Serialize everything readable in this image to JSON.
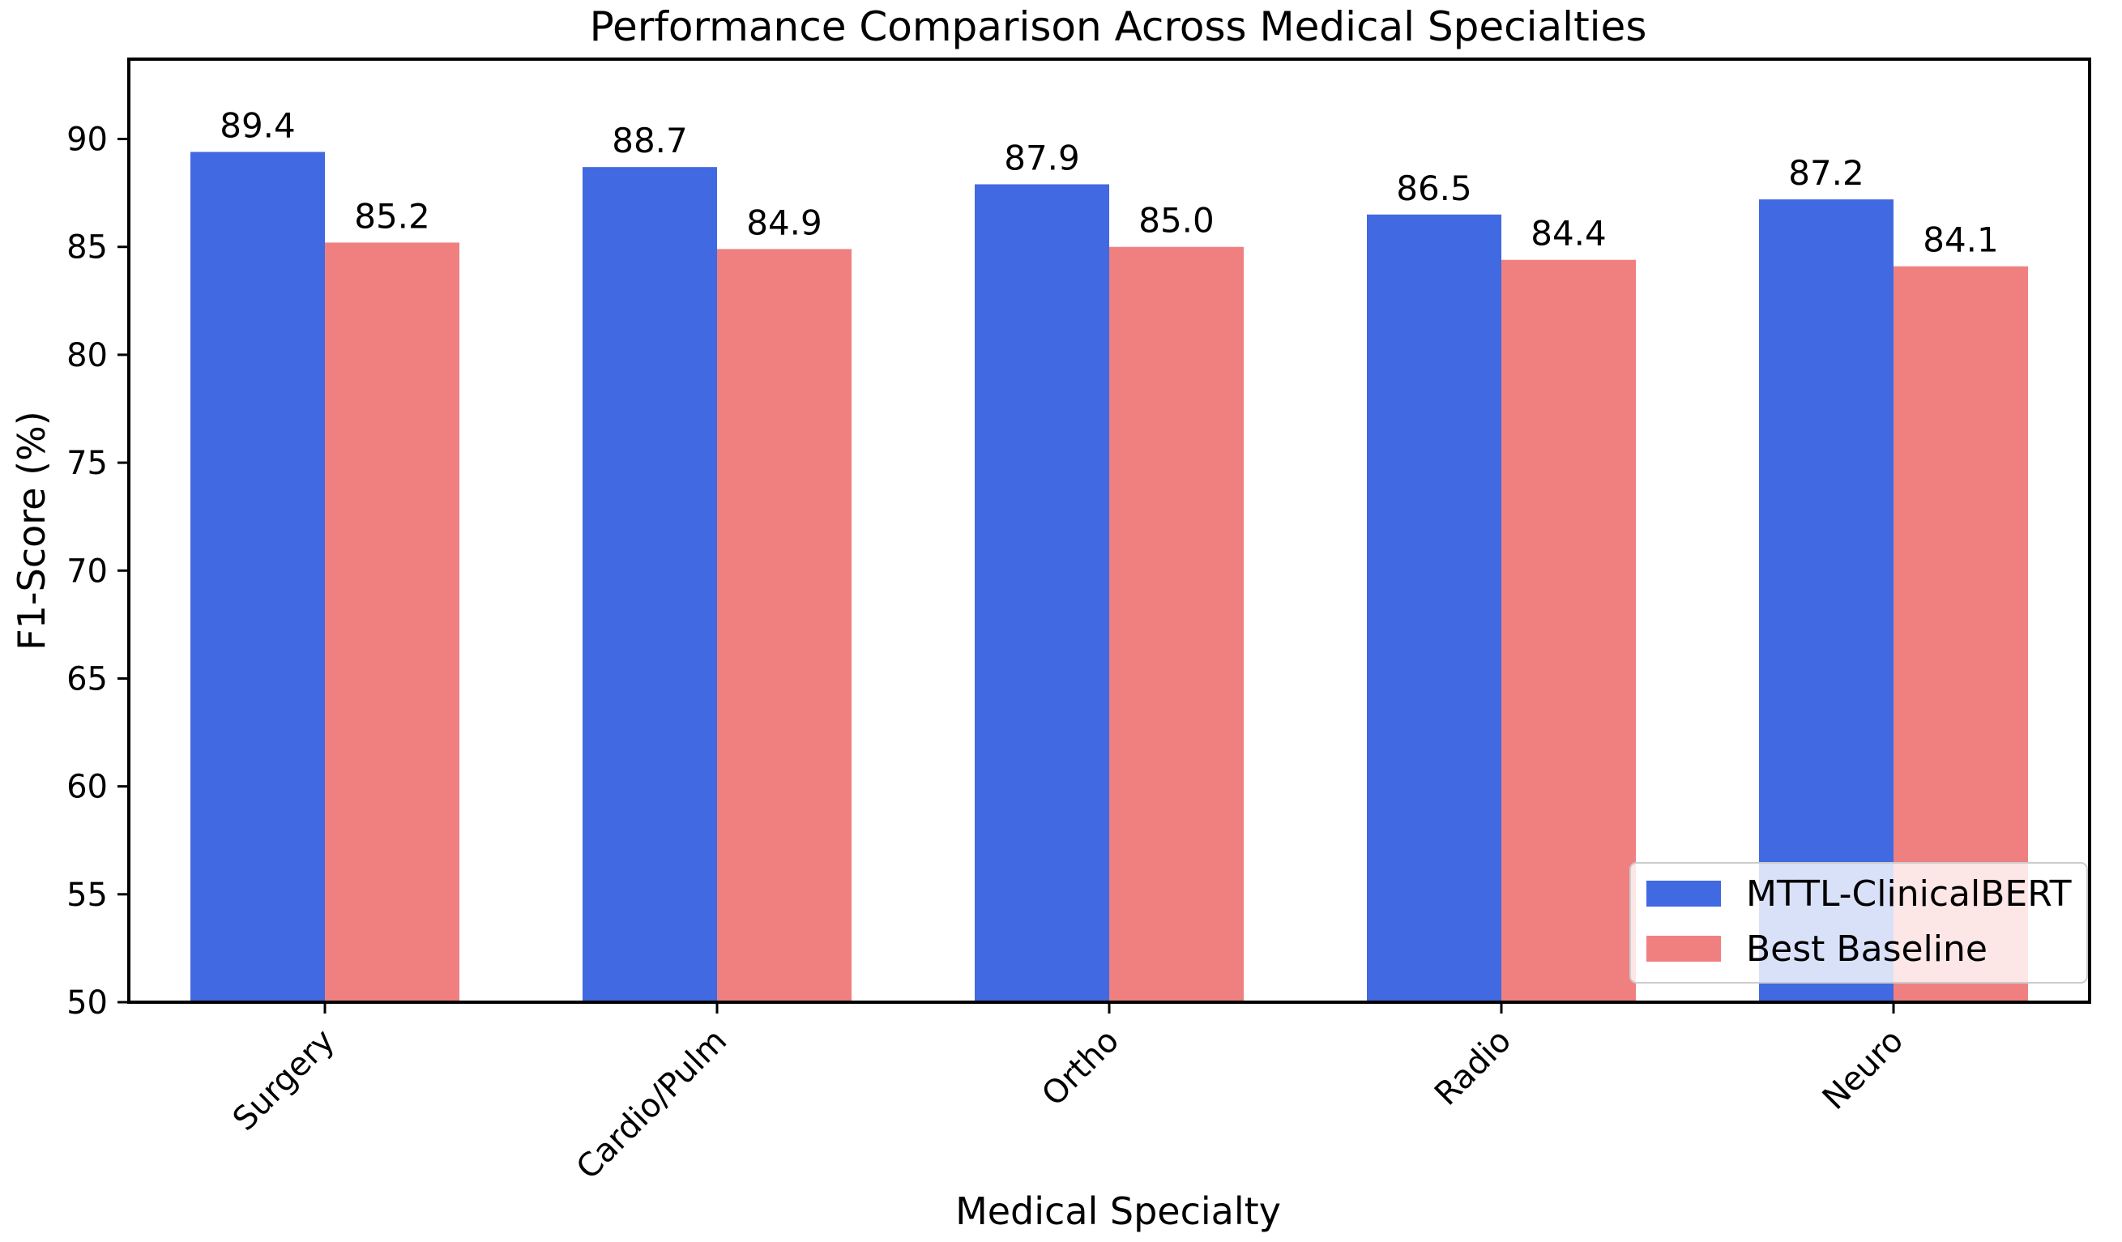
{
  "chart_data": {
    "type": "bar",
    "title": "Performance Comparison Across Medical Specialties",
    "xlabel": "Medical Specialty",
    "ylabel": "F1-Score (%)",
    "ylim": [
      50,
      93.7
    ],
    "yticks": [
      50,
      55,
      60,
      65,
      70,
      75,
      80,
      85,
      90
    ],
    "categories": [
      "Surgery",
      "Cardio/Pulm",
      "Ortho",
      "Radio",
      "Neuro"
    ],
    "series": [
      {
        "name": "MTTL-ClinicalBERT",
        "color": "#4169e1",
        "values": [
          89.4,
          88.7,
          87.9,
          86.5,
          87.2
        ],
        "labels": [
          "89.4",
          "88.7",
          "87.9",
          "86.5",
          "87.2"
        ]
      },
      {
        "name": "Best Baseline",
        "color": "#f08080",
        "values": [
          85.2,
          84.9,
          85.0,
          84.4,
          84.1
        ],
        "labels": [
          "85.2",
          "84.9",
          "85.0",
          "84.4",
          "84.1"
        ]
      }
    ],
    "legend": {
      "position": "lower-right"
    },
    "grid": false
  }
}
